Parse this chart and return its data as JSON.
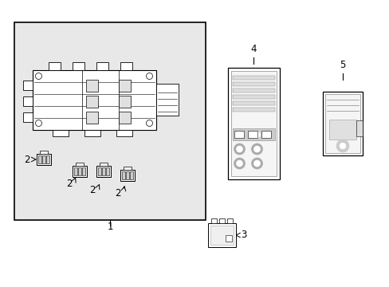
{
  "bg_color": "#ffffff",
  "line_color": "#000000",
  "gray_fill": "#d0d0d0",
  "light_gray": "#e8e8e8",
  "box_bg": "#f0f0f0",
  "part_labels": [
    "1",
    "2",
    "2",
    "2",
    "2",
    "3",
    "4",
    "5"
  ],
  "title": "",
  "figsize": [
    4.89,
    3.6
  ],
  "dpi": 100
}
